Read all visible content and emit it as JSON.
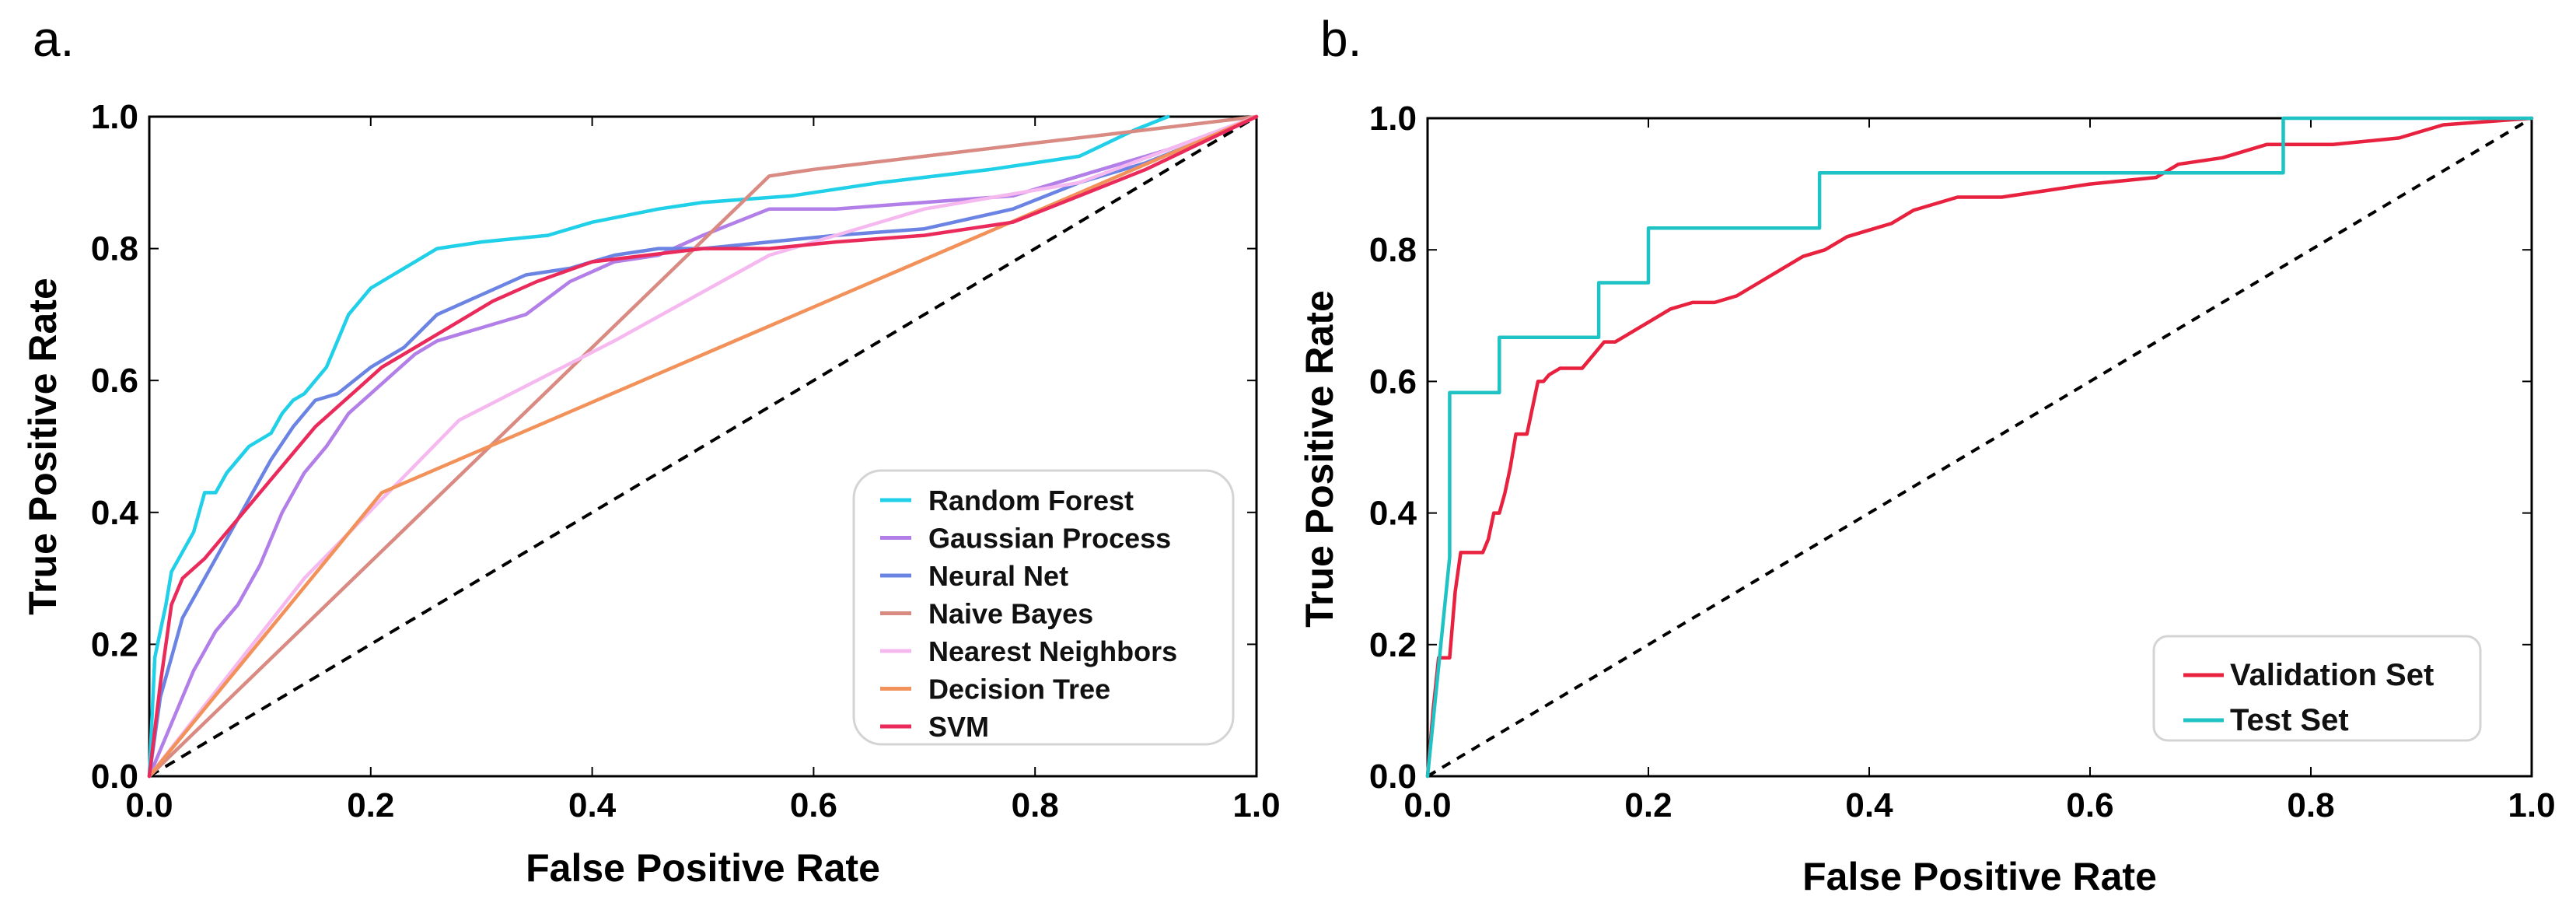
{
  "chart_data": [
    {
      "panel": "a.",
      "type": "line",
      "title": "",
      "xlabel": "False Positive Rate",
      "ylabel": "True  Positive Rate",
      "xlim": [
        0,
        1
      ],
      "ylim": [
        0,
        1
      ],
      "xticks": [
        "0.0",
        "0.2",
        "0.4",
        "0.6",
        "0.8",
        "1.0"
      ],
      "yticks": [
        "0.0",
        "0.2",
        "0.4",
        "0.6",
        "0.8",
        "1.0"
      ],
      "legend_position": "bottom-right",
      "diagonal": "dashed",
      "series": [
        {
          "name": "Random Forest",
          "color": "#1fd0e8",
          "x": [
            0,
            0.005,
            0.01,
            0.015,
            0.02,
            0.03,
            0.04,
            0.05,
            0.06,
            0.07,
            0.08,
            0.09,
            0.1,
            0.11,
            0.12,
            0.13,
            0.14,
            0.15,
            0.16,
            0.17,
            0.18,
            0.2,
            0.22,
            0.24,
            0.26,
            0.3,
            0.36,
            0.4,
            0.46,
            0.5,
            0.58,
            0.66,
            0.76,
            0.84,
            0.89,
            0.92
          ],
          "y": [
            0,
            0.18,
            0.22,
            0.26,
            0.31,
            0.34,
            0.37,
            0.43,
            0.43,
            0.46,
            0.48,
            0.5,
            0.51,
            0.52,
            0.55,
            0.57,
            0.58,
            0.6,
            0.62,
            0.66,
            0.7,
            0.74,
            0.76,
            0.78,
            0.8,
            0.81,
            0.82,
            0.84,
            0.86,
            0.87,
            0.88,
            0.9,
            0.92,
            0.94,
            0.98,
            1.0
          ]
        },
        {
          "name": "Gaussian Process",
          "color": "#b27fe8",
          "x": [
            0,
            0.02,
            0.04,
            0.06,
            0.08,
            0.1,
            0.12,
            0.14,
            0.16,
            0.18,
            0.2,
            0.22,
            0.24,
            0.26,
            0.28,
            0.3,
            0.34,
            0.38,
            0.42,
            0.46,
            0.5,
            0.56,
            0.62,
            0.7,
            0.78,
            0.86,
            0.92,
            1.0
          ],
          "y": [
            0,
            0.08,
            0.16,
            0.22,
            0.26,
            0.32,
            0.4,
            0.46,
            0.5,
            0.55,
            0.58,
            0.61,
            0.64,
            0.66,
            0.67,
            0.68,
            0.7,
            0.75,
            0.78,
            0.79,
            0.82,
            0.86,
            0.86,
            0.87,
            0.88,
            0.92,
            0.95,
            1.0
          ]
        },
        {
          "name": "Neural Net",
          "color": "#6b84e4",
          "x": [
            0,
            0.01,
            0.02,
            0.03,
            0.05,
            0.07,
            0.09,
            0.11,
            0.13,
            0.15,
            0.17,
            0.2,
            0.23,
            0.26,
            0.3,
            0.34,
            0.38,
            0.42,
            0.46,
            0.5,
            0.56,
            0.62,
            0.7,
            0.78,
            0.84,
            0.9,
            0.96,
            1.0
          ],
          "y": [
            0,
            0.12,
            0.18,
            0.24,
            0.3,
            0.36,
            0.42,
            0.48,
            0.53,
            0.57,
            0.58,
            0.62,
            0.65,
            0.7,
            0.73,
            0.76,
            0.77,
            0.79,
            0.8,
            0.8,
            0.81,
            0.82,
            0.83,
            0.86,
            0.9,
            0.93,
            0.97,
            1.0
          ]
        },
        {
          "name": "Naive Bayes",
          "color": "#d98a82",
          "x": [
            0,
            0.56,
            0.6,
            0.7,
            0.8,
            0.9,
            1.0
          ],
          "y": [
            0,
            0.91,
            0.92,
            0.94,
            0.96,
            0.98,
            1.0
          ]
        },
        {
          "name": "Nearest Neighbors",
          "color": "#f5b8ef",
          "x": [
            0,
            0.14,
            0.28,
            0.42,
            0.56,
            0.7,
            0.84,
            1.0
          ],
          "y": [
            0,
            0.3,
            0.54,
            0.66,
            0.79,
            0.86,
            0.9,
            1.0
          ]
        },
        {
          "name": "Decision Tree",
          "color": "#f2925a",
          "x": [
            0,
            0.21,
            1.0
          ],
          "y": [
            0,
            0.43,
            1.0
          ]
        },
        {
          "name": "SVM",
          "color": "#ea2a5a",
          "x": [
            0,
            0.01,
            0.015,
            0.02,
            0.03,
            0.05,
            0.07,
            0.09,
            0.11,
            0.13,
            0.15,
            0.17,
            0.19,
            0.21,
            0.24,
            0.27,
            0.31,
            0.35,
            0.4,
            0.45,
            0.5,
            0.56,
            0.62,
            0.7,
            0.78,
            0.84,
            0.9,
            1.0
          ],
          "y": [
            0,
            0.14,
            0.2,
            0.26,
            0.3,
            0.33,
            0.37,
            0.41,
            0.45,
            0.49,
            0.53,
            0.56,
            0.59,
            0.62,
            0.65,
            0.68,
            0.72,
            0.75,
            0.78,
            0.79,
            0.8,
            0.8,
            0.81,
            0.82,
            0.84,
            0.88,
            0.92,
            1.0
          ]
        }
      ]
    },
    {
      "panel": "b.",
      "type": "line",
      "title": "",
      "xlabel": "False Positive Rate",
      "ylabel": "True  Positive Rate",
      "xlim": [
        0,
        1
      ],
      "ylim": [
        0,
        1
      ],
      "xticks": [
        "0.0",
        "0.2",
        "0.4",
        "0.6",
        "0.8",
        "1.0"
      ],
      "yticks": [
        "0.0",
        "0.2",
        "0.4",
        "0.6",
        "0.8",
        "1.0"
      ],
      "legend_position": "bottom-right",
      "diagonal": "dashed",
      "series": [
        {
          "name": "Validation Set",
          "color": "#e8213e",
          "x": [
            0,
            0.005,
            0.01,
            0.015,
            0.02,
            0.025,
            0.03,
            0.035,
            0.05,
            0.055,
            0.06,
            0.065,
            0.07,
            0.075,
            0.08,
            0.085,
            0.09,
            0.1,
            0.105,
            0.11,
            0.12,
            0.13,
            0.14,
            0.15,
            0.16,
            0.17,
            0.18,
            0.19,
            0.2,
            0.21,
            0.22,
            0.24,
            0.26,
            0.28,
            0.3,
            0.32,
            0.34,
            0.36,
            0.38,
            0.4,
            0.42,
            0.44,
            0.48,
            0.52,
            0.56,
            0.6,
            0.66,
            0.68,
            0.72,
            0.76,
            0.82,
            0.88,
            0.9,
            0.92,
            1.0
          ],
          "y": [
            0,
            0.1,
            0.18,
            0.18,
            0.18,
            0.28,
            0.34,
            0.34,
            0.34,
            0.36,
            0.4,
            0.4,
            0.43,
            0.47,
            0.52,
            0.52,
            0.52,
            0.6,
            0.6,
            0.61,
            0.62,
            0.62,
            0.62,
            0.64,
            0.66,
            0.66,
            0.67,
            0.68,
            0.69,
            0.7,
            0.71,
            0.72,
            0.72,
            0.73,
            0.75,
            0.77,
            0.79,
            0.8,
            0.82,
            0.83,
            0.84,
            0.86,
            0.88,
            0.88,
            0.89,
            0.9,
            0.91,
            0.93,
            0.94,
            0.96,
            0.96,
            0.97,
            0.98,
            0.99,
            1.0
          ]
        },
        {
          "name": "Test Set",
          "color": "#1fc3c3",
          "x": [
            0,
            0.02,
            0.02,
            0.065,
            0.065,
            0.155,
            0.155,
            0.2,
            0.2,
            0.355,
            0.355,
            0.775,
            0.775,
            1.0
          ],
          "y": [
            0,
            0.333,
            0.583,
            0.583,
            0.667,
            0.667,
            0.75,
            0.75,
            0.833,
            0.833,
            0.917,
            0.917,
            1.0,
            1.0
          ]
        }
      ]
    }
  ]
}
